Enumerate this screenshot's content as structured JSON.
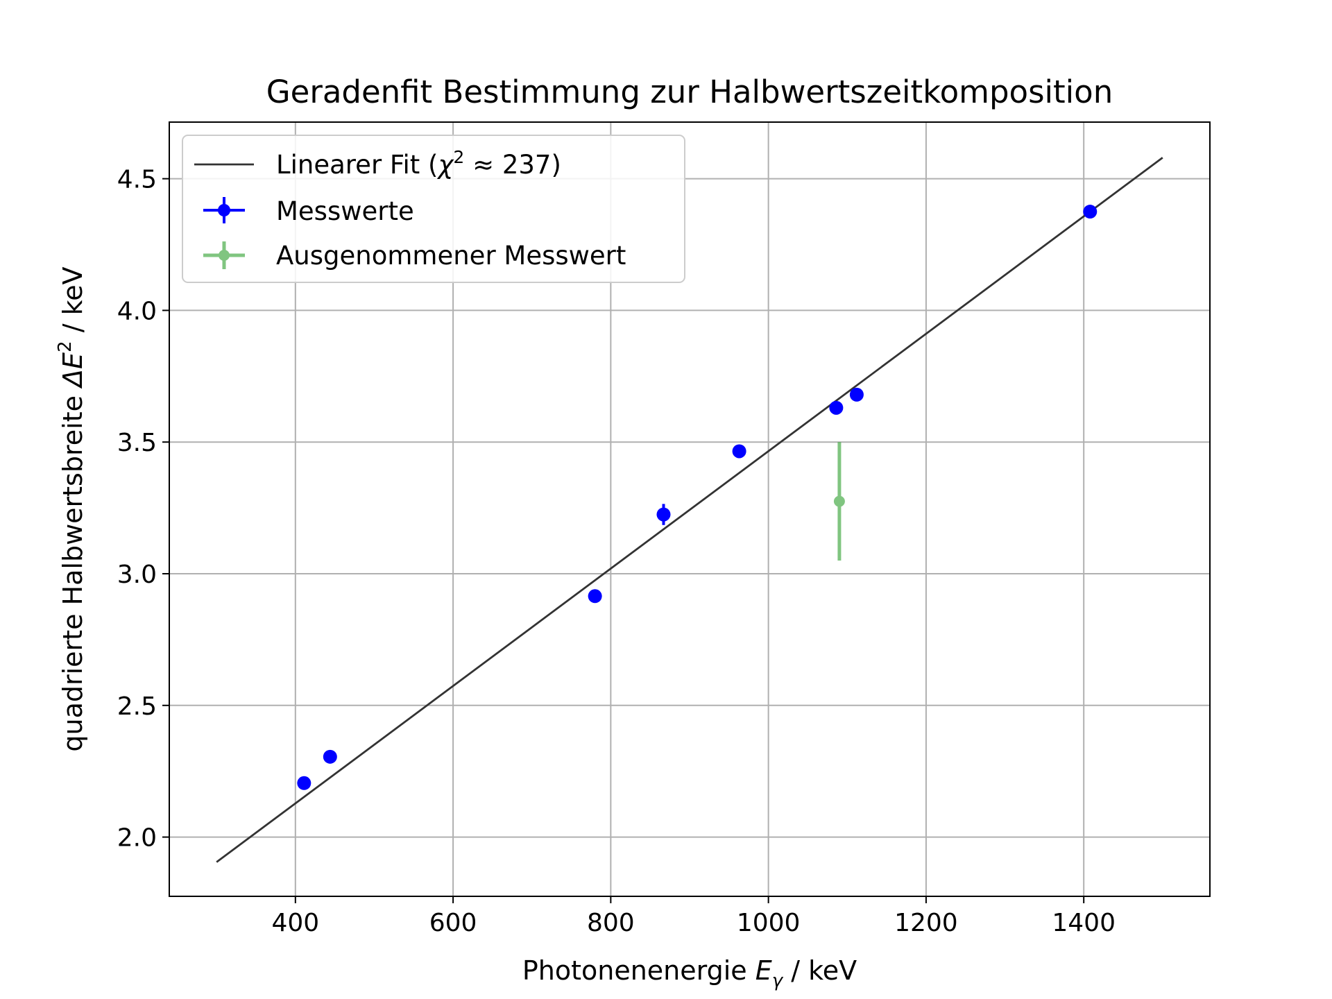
{
  "chart_data": {
    "type": "scatter",
    "title": "Geradenfit Bestimmung zur Halbwertszeitkomposition",
    "xlabel": {
      "text": "Photonenenergie ",
      "symbol": "E",
      "subscript": "γ",
      "unit": " / keV"
    },
    "ylabel": {
      "text": "quadrierte Halbwertsbreite ",
      "symbol": "ΔE",
      "superscript": "2",
      "unit": " / keV"
    },
    "xlim": [
      240,
      1560
    ],
    "ylim": [
      1.775,
      4.715
    ],
    "xticks": [
      400,
      600,
      800,
      1000,
      1200,
      1400
    ],
    "xtick_labels": [
      "400",
      "600",
      "800",
      "1000",
      "1200",
      "1400"
    ],
    "yticks": [
      2.0,
      2.5,
      3.0,
      3.5,
      4.0,
      4.5
    ],
    "ytick_labels": [
      "2.0",
      "2.5",
      "3.0",
      "3.5",
      "4.0",
      "4.5"
    ],
    "grid": true,
    "legend_position": "upper-left",
    "fit": {
      "name_prefix": "Linearer Fit (",
      "chi_symbol": "χ",
      "chi_exp": "2",
      "chi_rest": " ≈ 237)",
      "color": "#333333",
      "x": [
        300,
        1500
      ],
      "y": [
        1.905,
        4.58
      ]
    },
    "series": [
      {
        "name": "Messwerte",
        "color": "#0000ff",
        "x": [
          411,
          444,
          780,
          867,
          963,
          1086,
          1112,
          1408
        ],
        "y": [
          2.205,
          2.305,
          2.915,
          3.225,
          3.465,
          3.63,
          3.68,
          4.375
        ],
        "yerr": [
          0.005,
          0.005,
          0.005,
          0.04,
          0.005,
          0.005,
          0.005,
          0.005
        ]
      },
      {
        "name": "Ausgenommener Messwert",
        "color": "#2ca02c",
        "x": [
          1090
        ],
        "y": [
          3.275
        ],
        "yerr": [
          0.225
        ]
      }
    ]
  }
}
